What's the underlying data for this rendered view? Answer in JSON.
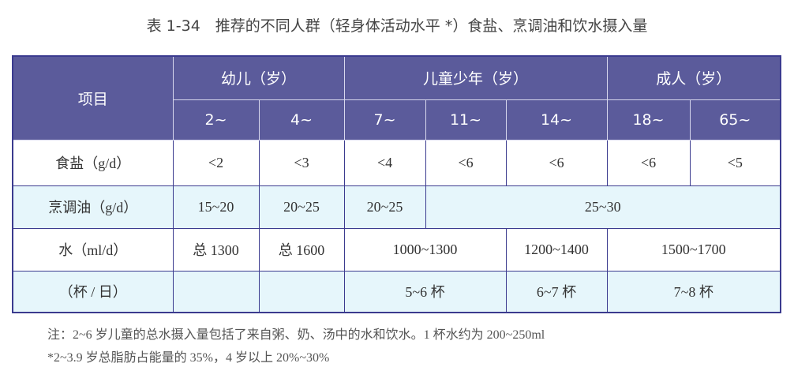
{
  "title": "表 1-34　推荐的不同人群（轻身体活动水平 *）食盐、烹调油和饮水摄入量",
  "header": {
    "item": "项目",
    "groups": [
      "幼儿（岁）",
      "儿童少年（岁）",
      "成人（岁）"
    ],
    "ages": [
      "2~",
      "4~",
      "7~",
      "11~",
      "14~",
      "18~",
      "65~"
    ]
  },
  "rows": {
    "salt": {
      "label": "食盐（g/d）",
      "values": [
        "<2",
        "<3",
        "<4",
        "<6",
        "<6",
        "<6",
        "<5"
      ]
    },
    "oil": {
      "label": "烹调油（g/d）",
      "values": [
        "15~20",
        "20~25",
        "20~25",
        "25~30"
      ]
    },
    "water": {
      "label": "水（ml/d）",
      "values": [
        "总 1300",
        "总 1600",
        "1000~1300",
        "1200~1400",
        "1500~1700"
      ]
    },
    "cups": {
      "label": "（杯 / 日）",
      "values": [
        "",
        "",
        "5~6 杯",
        "6~7 杯",
        "7~8 杯"
      ]
    }
  },
  "notes": [
    "注：2~6 岁儿童的总水摄入量包括了来自粥、奶、汤中的水和饮水。1 杯水约为 200~250ml",
    "*2~3.9 岁总脂肪占能量的 35%，4 岁以上 20%~30%"
  ]
}
